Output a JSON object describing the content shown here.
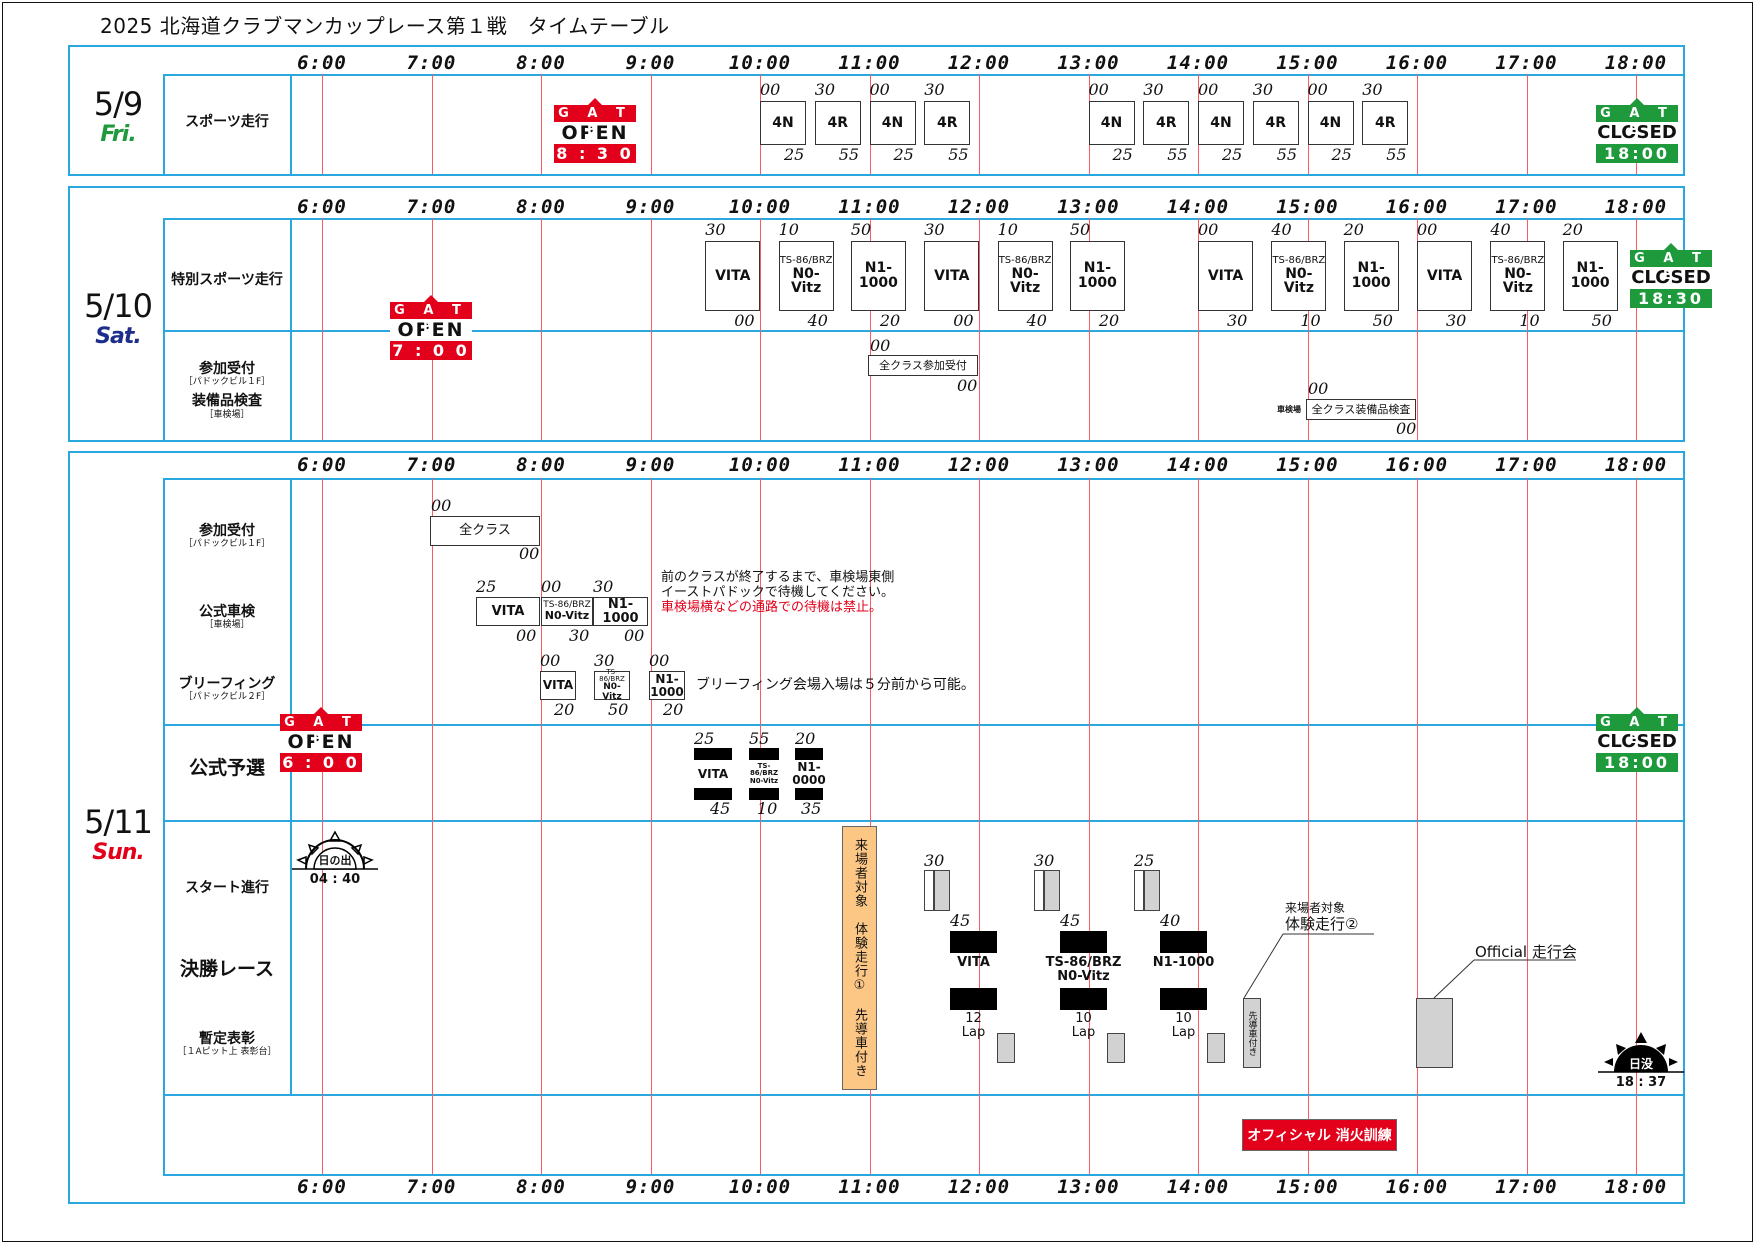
{
  "title": "2025 北海道クラブマンカップレース第１戦　タイムテーブル",
  "hours": [
    "6:00",
    "7:00",
    "8:00",
    "9:00",
    "10:00",
    "11:00",
    "12:00",
    "13:00",
    "14:00",
    "15:00",
    "16:00",
    "17:00",
    "18:00"
  ],
  "day1": {
    "date": "5/9",
    "dow": "Fri.",
    "row_label": "スポーツ走行",
    "sessions": [
      {
        "label": "4N",
        "start": "00",
        "end": "25"
      },
      {
        "label": "4R",
        "start": "30",
        "end": "55"
      },
      {
        "label": "4N",
        "start": "00",
        "end": "25"
      },
      {
        "label": "4R",
        "start": "30",
        "end": "55"
      },
      {
        "label": "4N",
        "start": "00",
        "end": "25"
      },
      {
        "label": "4R",
        "start": "30",
        "end": "55"
      },
      {
        "label": "4N",
        "start": "00",
        "end": "25"
      },
      {
        "label": "4R",
        "start": "30",
        "end": "55"
      },
      {
        "label": "4N",
        "start": "00",
        "end": "25"
      },
      {
        "label": "4R",
        "start": "30",
        "end": "55"
      }
    ],
    "gate_open": {
      "header": "G A T E",
      "main": "OPEN",
      "time": "8 : 3 0"
    },
    "gate_closed": {
      "header": "G A T E",
      "main": "CLOSED",
      "time": "18:00"
    }
  },
  "day2": {
    "date": "5/10",
    "dow": "Sat.",
    "row1_label": "特別スポーツ走行",
    "row2_label_a": "参加受付",
    "row2_sub_a": "［パドックビル１F］",
    "row2_label_b": "装備品検査",
    "row2_sub_b": "［車検場］",
    "sessions": [
      {
        "label": "VITA",
        "start": "30",
        "end": "00"
      },
      {
        "label1": "TS-86/BRZ",
        "label2": "N0-Vitz",
        "start": "10",
        "end": "40"
      },
      {
        "label": "N1-1000",
        "start": "50",
        "end": "20"
      },
      {
        "label": "VITA",
        "start": "30",
        "end": "00"
      },
      {
        "label1": "TS-86/BRZ",
        "label2": "N0-Vitz",
        "start": "10",
        "end": "40"
      },
      {
        "label": "N1-1000",
        "start": "50",
        "end": "20"
      },
      {
        "label": "VITA",
        "start": "00",
        "end": "30"
      },
      {
        "label1": "TS-86/BRZ",
        "label2": "N0-Vitz",
        "start": "40",
        "end": "10"
      },
      {
        "label": "N1-1000",
        "start": "20",
        "end": "50"
      },
      {
        "label": "VITA",
        "start": "00",
        "end": "30"
      },
      {
        "label1": "TS-86/BRZ",
        "label2": "N0-Vitz",
        "start": "40",
        "end": "10"
      },
      {
        "label": "N1-1000",
        "start": "20",
        "end": "50"
      }
    ],
    "reception": {
      "label": "全クラス参加受付",
      "start": "00",
      "end": "00"
    },
    "inspection": {
      "prefix": "車検場",
      "label": "全クラス装備品検査",
      "start": "00",
      "end": "00"
    },
    "gate_open": {
      "header": "G A T E",
      "main": "OPEN",
      "time": "7 : 0 0"
    },
    "gate_closed": {
      "header": "G A T E",
      "main": "CLOSED",
      "time": "18:30"
    }
  },
  "day3": {
    "date": "5/11",
    "dow": "Sun.",
    "labels": {
      "reception": "参加受付",
      "reception_sub": "［パドックビル１F］",
      "scrutineering": "公式車検",
      "scrutineering_sub": "［車検場］",
      "briefing": "ブリーフィング",
      "briefing_sub": "［パドックビル２F］",
      "qualifying": "公式予選",
      "start": "スタート進行",
      "final": "決勝レース",
      "podium": "暫定表彰",
      "podium_sub": "［１Aピット上 表彰台］"
    },
    "reception": {
      "label": "全クラス",
      "start": "00",
      "end": "00"
    },
    "scrutineering": [
      {
        "label": "VITA",
        "start": "25",
        "end": "00"
      },
      {
        "label1": "TS-86/BRZ",
        "label2": "N0-Vitz",
        "start": "00",
        "end": "30"
      },
      {
        "label": "N1-1000",
        "start": "30",
        "end": "00"
      }
    ],
    "scrutineering_note1": "前のクラスが終了するまで、車検場東側",
    "scrutineering_note2": "イーストパドックで待機してください。",
    "scrutineering_note3": "車検場横などの通路での待機は禁止。",
    "briefing": [
      {
        "label": "VITA",
        "start": "00",
        "end": "20"
      },
      {
        "label1": "TS-86/BRZ",
        "label2": "N0-Vitz",
        "start": "30",
        "end": "50"
      },
      {
        "label": "N1-1000",
        "start": "00",
        "end": "20"
      }
    ],
    "briefing_note": "ブリーフィング会場入場は５分前から可能。",
    "qualifying": [
      {
        "label": "VITA",
        "start": "25",
        "end": "45"
      },
      {
        "label1": "TS-86/BRZ",
        "label2": "N0-Vitz",
        "start": "55",
        "end": "10"
      },
      {
        "label": "N1-0000",
        "start": "20",
        "end": "35"
      }
    ],
    "experience1": "来場者対象　体験走行①　先導車付き",
    "finals": [
      {
        "name1": "VITA",
        "name2": "",
        "start_prog": "30",
        "race_start": "45",
        "laps": "12",
        "lap_unit": "Lap"
      },
      {
        "name1": "TS-86/BRZ",
        "name2": "N0-Vitz",
        "start_prog": "30",
        "race_start": "45",
        "laps": "10",
        "lap_unit": "Lap"
      },
      {
        "name1": "N1-1000",
        "name2": "",
        "start_prog": "25",
        "race_start": "40",
        "laps": "10",
        "lap_unit": "Lap"
      }
    ],
    "experience2_line1": "来場者対象",
    "experience2_line2": "体験走行②",
    "experience2_box": "先導車付き",
    "official_run": "Official 走行会",
    "fire_drill": "オフィシャル 消火訓練",
    "sunrise_label": "日の出",
    "sunrise_time": "04 : 40",
    "sunset_label": "日没",
    "sunset_time": "18 : 37",
    "gate_open": {
      "header": "G A T E",
      "main": "OPEN",
      "time": "6 : 0 0"
    },
    "gate_closed": {
      "header": "G A T E",
      "main": "CLOSED",
      "time": "18:00"
    }
  },
  "colors": {
    "grid": "#29a8e0",
    "tick": "#ff5a64",
    "gate_open": "#e2001a",
    "gate_closed": "#1e9a3c",
    "experience": "#fcc785",
    "fire_drill": "#e2001a"
  }
}
